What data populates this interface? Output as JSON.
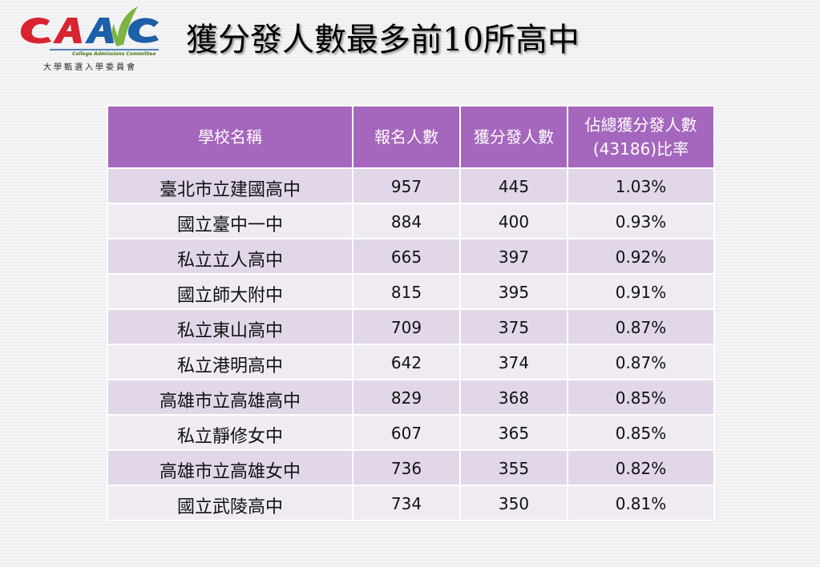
{
  "logo": {
    "en_text": "College Admissions Committee",
    "zh_text": "大學甄選入學委員會"
  },
  "title": "獲分發人數最多前10所高中",
  "table": {
    "headers": [
      "學校名稱",
      "報名人數",
      "獲分發人數",
      "佔總獲分發人數(43186)比率"
    ],
    "rows": [
      [
        "臺北市立建國高中",
        "957",
        "445",
        "1.03%"
      ],
      [
        "國立臺中一中",
        "884",
        "400",
        "0.93%"
      ],
      [
        "私立立人高中",
        "665",
        "397",
        "0.92%"
      ],
      [
        "國立師大附中",
        "815",
        "395",
        "0.91%"
      ],
      [
        "私立東山高中",
        "709",
        "375",
        "0.87%"
      ],
      [
        "私立港明高中",
        "642",
        "374",
        "0.87%"
      ],
      [
        "高雄市立高雄高中",
        "829",
        "368",
        "0.85%"
      ],
      [
        "私立靜修女中",
        "607",
        "365",
        "0.85%"
      ],
      [
        "高雄市立高雄女中",
        "736",
        "355",
        "0.82%"
      ],
      [
        "國立武陵高中",
        "734",
        "350",
        "0.81%"
      ]
    ]
  },
  "colors": {
    "header_bg": "#a566bd",
    "row_odd": "#e1d7e8",
    "row_even": "#f0ebf3",
    "logo_red": "#d9232e",
    "logo_blue": "#1d5fa8",
    "logo_green": "#7cb342"
  }
}
